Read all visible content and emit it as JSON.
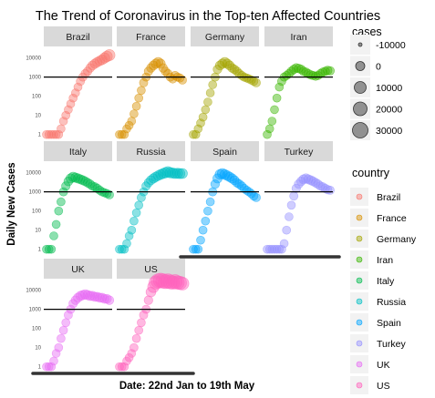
{
  "chart_data": {
    "type": "scatter",
    "title": "The Trend of Coronavirus in the Top-ten Affected Countries",
    "xlabel": "Date: 22nd Jan to 19th May",
    "ylabel": "Daily New Cases",
    "x_range": [
      "2020-01-22",
      "2020-05-19"
    ],
    "y_scale": "log10",
    "y_ticks": [
      1,
      10,
      100,
      1000,
      10000
    ],
    "y_tick_labels": [
      "1",
      "10",
      "100",
      "1000",
      "10000"
    ],
    "reference_line_y": 1000,
    "facets": [
      {
        "name": "Brazil",
        "color": "#F8766D",
        "values": [
          1,
          1,
          1,
          1,
          1,
          1,
          2,
          5,
          10,
          20,
          40,
          80,
          150,
          300,
          600,
          1000,
          1500,
          2000,
          3000,
          4000,
          5000,
          6000,
          7000,
          8000,
          10000,
          12000,
          14000
        ]
      },
      {
        "name": "France",
        "color": "#D89000",
        "values": [
          1,
          1,
          1,
          2,
          3,
          5,
          12,
          30,
          80,
          200,
          500,
          1000,
          2000,
          3000,
          4000,
          5000,
          6000,
          5000,
          3000,
          2000,
          1500,
          1000,
          800,
          1200,
          1000,
          900,
          700
        ]
      },
      {
        "name": "Germany",
        "color": "#A3A500",
        "values": [
          1,
          1,
          2,
          4,
          8,
          20,
          50,
          150,
          400,
          1000,
          2500,
          4000,
          5000,
          6000,
          5000,
          4000,
          3000,
          2500,
          2000,
          1500,
          1200,
          1000,
          900,
          800,
          700,
          600,
          500
        ]
      },
      {
        "name": "Iran",
        "color": "#39B600",
        "values": [
          1,
          2,
          5,
          20,
          80,
          300,
          600,
          1000,
          1200,
          1500,
          2000,
          2500,
          3000,
          2800,
          2500,
          2000,
          1800,
          1500,
          1300,
          1200,
          1100,
          1200,
          1500,
          1800,
          2000,
          2200,
          2100
        ]
      },
      {
        "name": "Italy",
        "color": "#00BB4E",
        "values": [
          1,
          1,
          1,
          5,
          20,
          100,
          300,
          1000,
          2000,
          3500,
          5000,
          6000,
          5500,
          5000,
          4500,
          4000,
          3500,
          3000,
          2500,
          2000,
          1800,
          1500,
          1200,
          1000,
          900,
          800,
          700
        ]
      },
      {
        "name": "Russia",
        "color": "#00BFC4",
        "values": [
          1,
          1,
          1,
          2,
          5,
          10,
          30,
          80,
          200,
          500,
          1000,
          2000,
          3000,
          4000,
          5000,
          6000,
          7000,
          8000,
          9000,
          10000,
          11000,
          10000,
          9500,
          9000,
          9200,
          8900,
          9000
        ]
      },
      {
        "name": "Spain",
        "color": "#00A5FF",
        "values": [
          1,
          1,
          1,
          3,
          10,
          30,
          100,
          300,
          1000,
          2500,
          5000,
          8000,
          9000,
          8000,
          7000,
          6000,
          5000,
          4000,
          3000,
          2500,
          2000,
          1500,
          1200,
          1000,
          800,
          600,
          500
        ]
      },
      {
        "name": "Turkey",
        "color": "#9590FF",
        "values": [
          1,
          1,
          1,
          1,
          1,
          1,
          1,
          2,
          10,
          50,
          200,
          600,
          1500,
          2500,
          3500,
          4500,
          5000,
          4500,
          4000,
          3500,
          3000,
          2500,
          2000,
          1800,
          1500,
          1300,
          1200
        ]
      },
      {
        "name": "UK",
        "color": "#E76BF3",
        "values": [
          1,
          1,
          1,
          2,
          5,
          10,
          30,
          80,
          200,
          500,
          1000,
          2000,
          3000,
          4000,
          5000,
          5500,
          6000,
          5500,
          5000,
          5000,
          4500,
          4500,
          4000,
          4000,
          3500,
          3500,
          3000
        ]
      },
      {
        "name": "US",
        "color": "#FF62BC",
        "values": [
          1,
          1,
          1,
          2,
          3,
          5,
          10,
          30,
          80,
          200,
          500,
          1000,
          3000,
          8000,
          15000,
          25000,
          30000,
          32000,
          30000,
          28000,
          30000,
          27000,
          25000,
          28000,
          25000,
          24000,
          22000
        ]
      }
    ],
    "legend": {
      "placement": "right",
      "size": {
        "title": "cases",
        "entries": [
          "-10000",
          "0",
          "10000",
          "20000",
          "30000"
        ]
      },
      "color": {
        "title": "country",
        "entries": [
          "Brazil",
          "France",
          "Germany",
          "Iran",
          "Italy",
          "Russia",
          "Spain",
          "Turkey",
          "UK",
          "US"
        ]
      }
    }
  }
}
